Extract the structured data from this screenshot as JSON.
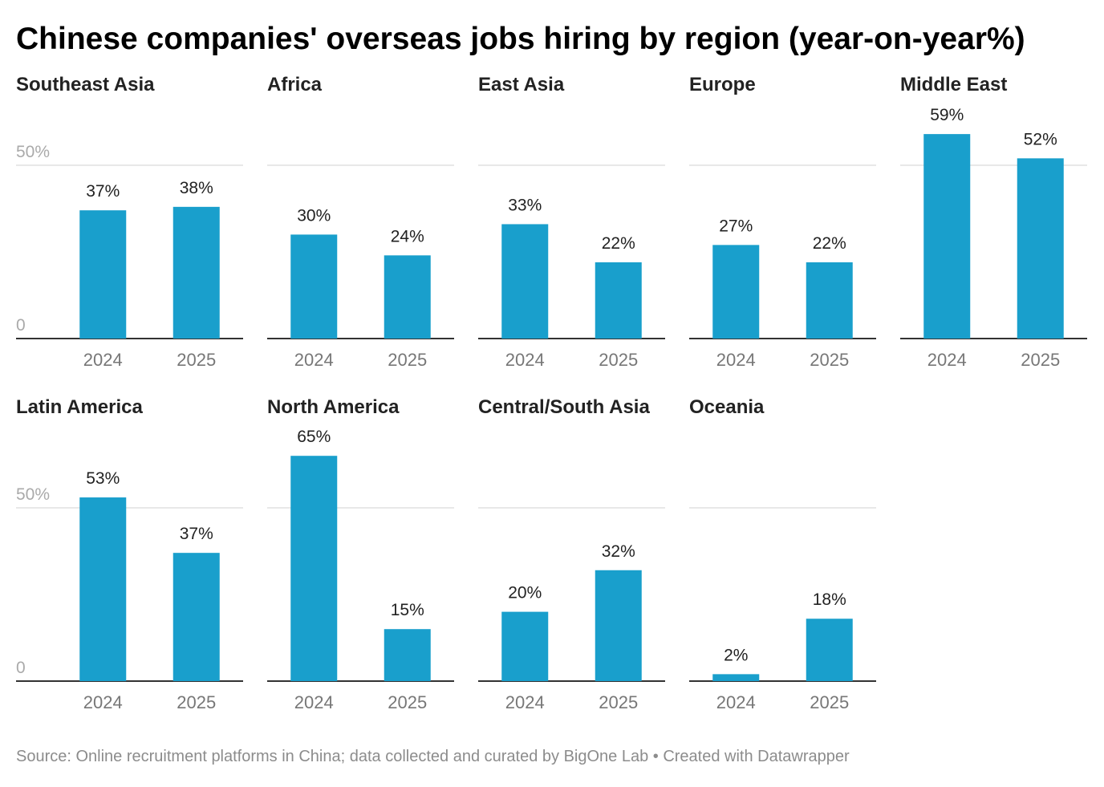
{
  "title": "Chinese companies' overseas jobs hiring by region (year-on-year%)",
  "source": "Source: Online recruitment platforms in China; data collected and curated by BigOne Lab • Created with Datawrapper",
  "chart_data": [
    {
      "type": "bar",
      "title": "Southeast Asia",
      "categories": [
        "2024",
        "2025"
      ],
      "values": [
        37,
        38
      ],
      "value_labels": [
        "37%",
        "38%"
      ],
      "color": "#199fcc",
      "ylim": [
        0,
        68
      ],
      "yticks": [
        0,
        {
          "value": 50,
          "label": "50%"
        }
      ],
      "show_ytick_labels": true,
      "grid": true
    },
    {
      "type": "bar",
      "title": "Africa",
      "categories": [
        "2024",
        "2025"
      ],
      "values": [
        30,
        24
      ],
      "value_labels": [
        "30%",
        "24%"
      ],
      "color": "#199fcc",
      "ylim": [
        0,
        68
      ],
      "yticks": [
        0,
        50
      ],
      "show_ytick_labels": false,
      "grid": true
    },
    {
      "type": "bar",
      "title": "East Asia",
      "categories": [
        "2024",
        "2025"
      ],
      "values": [
        33,
        22
      ],
      "value_labels": [
        "33%",
        "22%"
      ],
      "color": "#199fcc",
      "ylim": [
        0,
        68
      ],
      "yticks": [
        0,
        50
      ],
      "show_ytick_labels": false,
      "grid": true
    },
    {
      "type": "bar",
      "title": "Europe",
      "categories": [
        "2024",
        "2025"
      ],
      "values": [
        27,
        22
      ],
      "value_labels": [
        "27%",
        "22%"
      ],
      "color": "#199fcc",
      "ylim": [
        0,
        68
      ],
      "yticks": [
        0,
        50
      ],
      "show_ytick_labels": false,
      "grid": true
    },
    {
      "type": "bar",
      "title": "Middle East",
      "categories": [
        "2024",
        "2025"
      ],
      "values": [
        59,
        52
      ],
      "value_labels": [
        "59%",
        "52%"
      ],
      "color": "#199fcc",
      "ylim": [
        0,
        68
      ],
      "yticks": [
        0,
        50
      ],
      "show_ytick_labels": false,
      "grid": true
    },
    {
      "type": "bar",
      "title": "Latin America",
      "categories": [
        "2024",
        "2025"
      ],
      "values": [
        53,
        37
      ],
      "value_labels": [
        "53%",
        "37%"
      ],
      "color": "#199fcc",
      "ylim": [
        0,
        68
      ],
      "yticks": [
        0,
        {
          "value": 50,
          "label": "50%"
        }
      ],
      "show_ytick_labels": true,
      "grid": true
    },
    {
      "type": "bar",
      "title": "North America",
      "categories": [
        "2024",
        "2025"
      ],
      "values": [
        65,
        15
      ],
      "value_labels": [
        "65%",
        "15%"
      ],
      "color": "#199fcc",
      "ylim": [
        0,
        68
      ],
      "yticks": [
        0,
        50
      ],
      "show_ytick_labels": false,
      "grid": true
    },
    {
      "type": "bar",
      "title": "Central/South Asia",
      "categories": [
        "2024",
        "2025"
      ],
      "values": [
        20,
        32
      ],
      "value_labels": [
        "20%",
        "32%"
      ],
      "color": "#199fcc",
      "ylim": [
        0,
        68
      ],
      "yticks": [
        0,
        50
      ],
      "show_ytick_labels": false,
      "grid": true
    },
    {
      "type": "bar",
      "title": "Oceania",
      "categories": [
        "2024",
        "2025"
      ],
      "values": [
        2,
        18
      ],
      "value_labels": [
        "2%",
        "18%"
      ],
      "color": "#199fcc",
      "ylim": [
        0,
        68
      ],
      "yticks": [
        0,
        50
      ],
      "show_ytick_labels": false,
      "grid": true
    }
  ]
}
